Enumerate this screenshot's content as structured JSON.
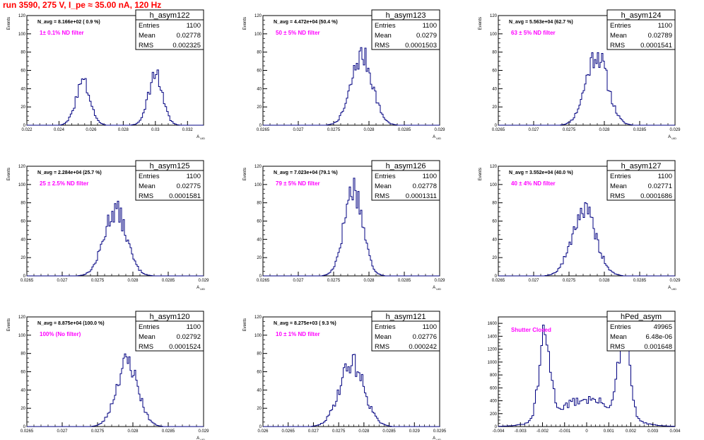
{
  "run_title": "run 3590,   275 V, I_pe ≈ 35.00 nA, 120 Hz",
  "chart_data": [
    {
      "type": "bar",
      "hist_name": "h_asym122",
      "stats": {
        "entries": "1100",
        "mean": "0.02778",
        "rms": "0.002325"
      },
      "navg": "N_avg = 8.166e+02 ( 0.9 %)",
      "note": "1± 0.1% ND filter",
      "ylabel": "Events",
      "xlabel": "A_UID",
      "xlim": [
        0.022,
        0.033
      ],
      "ylim": [
        0,
        120
      ],
      "xticks": [
        0.022,
        0.024,
        0.026,
        0.028,
        0.03,
        0.032
      ],
      "xtick_labels": [
        "0.022",
        "0.024",
        "0.026",
        "0.028",
        "0.03",
        "0.032"
      ],
      "yticks": [
        0,
        20,
        40,
        60,
        80,
        100,
        120
      ],
      "peaks": [
        {
          "center": 0.0255,
          "sigma": 0.00045,
          "height": 47
        },
        {
          "center": 0.03,
          "sigma": 0.00045,
          "height": 56
        }
      ],
      "bin_width": 0.0001,
      "seed": 3
    },
    {
      "type": "bar",
      "hist_name": "h_asym123",
      "stats": {
        "entries": "1100",
        "mean": "0.0279",
        "rms": "0.0001503"
      },
      "navg": "N_avg = 4.472e+04 (50.4 %)",
      "note": "50 ± 5% ND filter",
      "ylabel": "Events",
      "xlabel": "A_UID",
      "xlim": [
        0.0265,
        0.029
      ],
      "ylim": [
        0,
        120
      ],
      "xticks": [
        0.0265,
        0.027,
        0.0275,
        0.028,
        0.0285,
        0.029
      ],
      "xtick_labels": [
        "0.0265",
        "0.027",
        "0.0275",
        "0.028",
        "0.0285",
        "0.029"
      ],
      "yticks": [
        0,
        20,
        40,
        60,
        80,
        100,
        120
      ],
      "peaks": [
        {
          "center": 0.0279,
          "sigma": 0.00015,
          "height": 76
        }
      ],
      "bin_width": 2e-05,
      "seed": 7
    },
    {
      "type": "bar",
      "hist_name": "h_asym124",
      "stats": {
        "entries": "1100",
        "mean": "0.02789",
        "rms": "0.0001541"
      },
      "navg": "N_avg = 5.563e+04 (62.7 %)",
      "note": "63 ± 5% ND filter",
      "ylabel": "Events",
      "xlabel": "A_UID",
      "xlim": [
        0.0265,
        0.029
      ],
      "ylim": [
        0,
        120
      ],
      "xticks": [
        0.0265,
        0.027,
        0.0275,
        0.028,
        0.0285,
        0.029
      ],
      "xtick_labels": [
        "0.0265",
        "0.027",
        "0.0275",
        "0.028",
        "0.0285",
        "0.029"
      ],
      "yticks": [
        0,
        20,
        40,
        60,
        80,
        100,
        120
      ],
      "peaks": [
        {
          "center": 0.02789,
          "sigma": 0.000154,
          "height": 78
        }
      ],
      "bin_width": 2e-05,
      "seed": 11
    },
    {
      "type": "bar",
      "hist_name": "h_asym125",
      "stats": {
        "entries": "1100",
        "mean": "0.02775",
        "rms": "0.0001581"
      },
      "navg": "N_avg = 2.284e+04 (25.7 %)",
      "note": "25 ± 2.5% ND filter",
      "ylabel": "Events",
      "xlabel": "A_UID",
      "xlim": [
        0.0265,
        0.029
      ],
      "ylim": [
        0,
        120
      ],
      "xticks": [
        0.0265,
        0.027,
        0.0275,
        0.028,
        0.0285,
        0.029
      ],
      "xtick_labels": [
        "0.0265",
        "0.027",
        "0.0275",
        "0.028",
        "0.0285",
        "0.029"
      ],
      "yticks": [
        0,
        20,
        40,
        60,
        80,
        100,
        120
      ],
      "peaks": [
        {
          "center": 0.02775,
          "sigma": 0.000158,
          "height": 72
        }
      ],
      "bin_width": 2e-05,
      "seed": 13
    },
    {
      "type": "bar",
      "hist_name": "h_asym126",
      "stats": {
        "entries": "1100",
        "mean": "0.02778",
        "rms": "0.0001311"
      },
      "navg": "N_avg = 7.023e+04 (79.1 %)",
      "note": "79 ± 5% ND filter",
      "ylabel": "Events",
      "xlabel": "A_UID",
      "xlim": [
        0.0265,
        0.029
      ],
      "ylim": [
        0,
        120
      ],
      "xticks": [
        0.0265,
        0.027,
        0.0275,
        0.028,
        0.0285,
        0.029
      ],
      "xtick_labels": [
        "0.0265",
        "0.027",
        "0.0275",
        "0.028",
        "0.0285",
        "0.029"
      ],
      "yticks": [
        0,
        20,
        40,
        60,
        80,
        100,
        120
      ],
      "peaks": [
        {
          "center": 0.02778,
          "sigma": 0.000131,
          "height": 97
        }
      ],
      "bin_width": 2e-05,
      "seed": 17
    },
    {
      "type": "bar",
      "hist_name": "h_asym127",
      "stats": {
        "entries": "1100",
        "mean": "0.02771",
        "rms": "0.0001686"
      },
      "navg": "N_avg = 3.552e+04 (40.0 %)",
      "note": "40 ± 4% ND filter",
      "ylabel": "Events",
      "xlabel": "A_UID",
      "xlim": [
        0.0265,
        0.029
      ],
      "ylim": [
        0,
        120
      ],
      "xticks": [
        0.0265,
        0.027,
        0.0275,
        0.028,
        0.0285,
        0.029
      ],
      "xtick_labels": [
        "0.0265",
        "0.027",
        "0.0275",
        "0.028",
        "0.0285",
        "0.029"
      ],
      "yticks": [
        0,
        20,
        40,
        60,
        80,
        100,
        120
      ],
      "peaks": [
        {
          "center": 0.02771,
          "sigma": 0.000169,
          "height": 72
        }
      ],
      "bin_width": 2e-05,
      "seed": 19
    },
    {
      "type": "bar",
      "hist_name": "h_asym120",
      "stats": {
        "entries": "1100",
        "mean": "0.02792",
        "rms": "0.0001524"
      },
      "navg": "N_avg = 8.875e+04 (100.0 %)",
      "note": "100% (No filter)",
      "ylabel": "Events",
      "xlabel": "A_UID",
      "xlim": [
        0.0265,
        0.029
      ],
      "ylim": [
        0,
        120
      ],
      "xticks": [
        0.0265,
        0.027,
        0.0275,
        0.028,
        0.0285,
        0.029
      ],
      "xtick_labels": [
        "0.0265",
        "0.027",
        "0.0275",
        "0.028",
        "0.0285",
        "0.029"
      ],
      "yticks": [
        0,
        20,
        40,
        60,
        80,
        100,
        120
      ],
      "peaks": [
        {
          "center": 0.02792,
          "sigma": 0.000152,
          "height": 71
        }
      ],
      "bin_width": 2e-05,
      "seed": 23
    },
    {
      "type": "bar",
      "hist_name": "h_asym121",
      "stats": {
        "entries": "1100",
        "mean": "0.02776",
        "rms": "0.000242"
      },
      "navg": "N_avg = 8.275e+03 ( 9.3 %)",
      "note": "10 ± 1% ND filter",
      "ylabel": "Events",
      "xlabel": "A_UID",
      "xlim": [
        0.026,
        0.0295
      ],
      "ylim": [
        0,
        120
      ],
      "xticks": [
        0.026,
        0.0265,
        0.027,
        0.0275,
        0.028,
        0.0285,
        0.029,
        0.0295
      ],
      "xtick_labels": [
        "0.026",
        "0.0265",
        "0.027",
        "0.0275",
        "0.028",
        "0.0285",
        "0.029",
        "0.0295"
      ],
      "yticks": [
        0,
        20,
        40,
        60,
        80,
        100,
        120
      ],
      "peaks": [
        {
          "center": 0.02776,
          "sigma": 0.000242,
          "height": 70
        }
      ],
      "bin_width": 3e-05,
      "seed": 29
    },
    {
      "type": "bar",
      "hist_name": "hPed_asym",
      "stats": {
        "entries": "49965",
        "mean": "6.48e-06",
        "rms": "0.001648"
      },
      "navg": "",
      "note": "Shutter Closed",
      "ylabel": "",
      "xlabel": "",
      "xlim": [
        -0.004,
        0.004
      ],
      "ylim": [
        0,
        1700
      ],
      "xticks": [
        -0.004,
        -0.003,
        -0.002,
        -0.001,
        0,
        0.001,
        0.002,
        0.003,
        0.004
      ],
      "xtick_labels": [
        "-0.004",
        "-0.003",
        "-0.002",
        "-0.001",
        "0",
        "0.001",
        "0.002",
        "0.003",
        "0.004"
      ],
      "yticks": [
        0,
        200,
        400,
        600,
        800,
        1000,
        1200,
        1400,
        1600
      ],
      "peaks": [
        {
          "center": -0.0019,
          "sigma": 0.00025,
          "height": 1250
        },
        {
          "center": 0.0017,
          "sigma": 0.00025,
          "height": 1300
        },
        {
          "center": 0.0,
          "sigma": 0.0013,
          "height": 420
        }
      ],
      "bin_width": 8e-05,
      "seed": 31
    }
  ],
  "colors": {
    "title": "#ff0000",
    "note": "#ff00ff",
    "line": "#000080"
  }
}
